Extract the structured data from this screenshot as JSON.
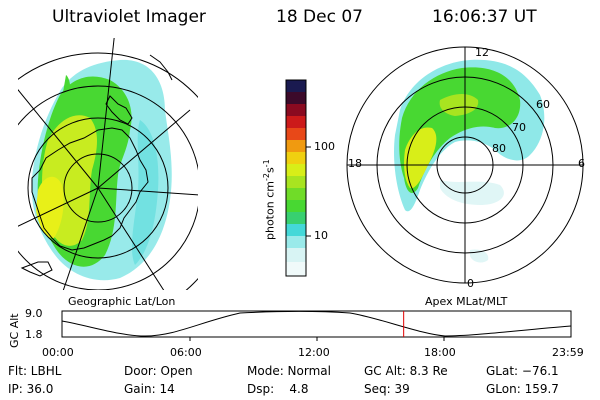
{
  "header": {
    "title": "Ultraviolet Imager",
    "date": "18 Dec 07",
    "time": "16:06:37 UT"
  },
  "colorbar": {
    "unit_main": "photon cm",
    "unit_exp1": "-2",
    "unit_s": "s",
    "unit_exp2": "-1",
    "ticks": [
      "100",
      "10"
    ]
  },
  "left_panel": {
    "label": "Geographic Lat/Lon"
  },
  "right_panel": {
    "label": "Apex MLat/MLT",
    "mlt_labels": {
      "top": "12",
      "left": "18",
      "right": "6",
      "bottom": "0"
    },
    "lat_labels": [
      "60",
      "70",
      "80"
    ]
  },
  "altitude_plot": {
    "ylabel": "GC Alt",
    "yticks": [
      "9.0",
      "1.8"
    ],
    "xticks": [
      "00:00",
      "06:00",
      "12:00",
      "18:00",
      "23:59"
    ],
    "marker_time_hours": 16.11
  },
  "info": {
    "row1": {
      "filter": "Flt: LBHL",
      "door": "Door: Open",
      "mode": "Mode: Normal",
      "gcalt": "GC Alt: 8.3 Re",
      "glat": "GLat: −76.1"
    },
    "row2": {
      "ip": "IP: 36.0",
      "gain": "Gain: 14",
      "dsp": "Dsp:    4.8",
      "seq": "Seq: 39",
      "glon": "GLon: 159.7"
    }
  },
  "colors": {
    "aurora_green": "#48d832",
    "aurora_yellow": "#d8ee18",
    "aurora_cyan": "#44d8d8",
    "marker_red": "#e00000"
  }
}
